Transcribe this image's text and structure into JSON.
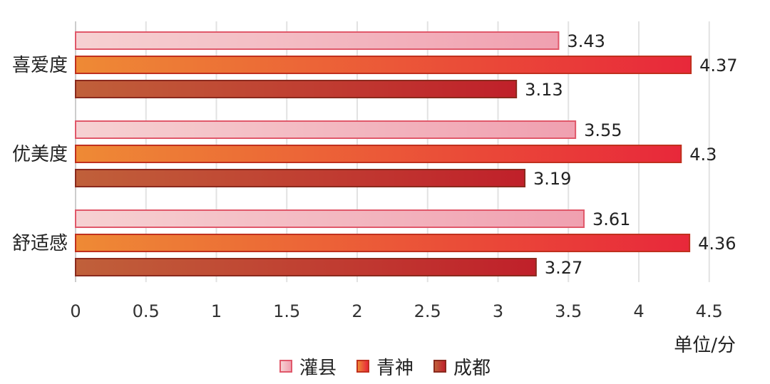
{
  "chart_data": {
    "type": "bar",
    "orientation": "horizontal",
    "categories": [
      "喜爱度",
      "优美度",
      "舒适感"
    ],
    "series": [
      {
        "name": "灌县",
        "values": [
          3.43,
          3.55,
          3.61
        ]
      },
      {
        "name": "青神",
        "values": [
          4.37,
          4.3,
          4.36
        ]
      },
      {
        "name": "成都",
        "values": [
          3.13,
          3.19,
          3.27
        ]
      }
    ],
    "data_labels": [
      [
        "3.43",
        "3.55",
        "3.61"
      ],
      [
        "4.37",
        "4.3",
        "4.36"
      ],
      [
        "3.13",
        "3.19",
        "3.27"
      ]
    ],
    "xticks": [
      "0",
      "0.5",
      "1",
      "1.5",
      "2",
      "2.5",
      "3",
      "3.5",
      "4",
      "4.5"
    ],
    "xlim": [
      0,
      4.5
    ],
    "unit_label": "单位/分",
    "grid": "vertical",
    "legend_position": "bottom-center",
    "colors": [
      {
        "start": "#f6d1d2",
        "end": "#f0a0b0",
        "border": "#e0586a"
      },
      {
        "start": "#ee8a35",
        "end": "#e8283a",
        "border": "#c0301e"
      },
      {
        "start": "#c0603a",
        "end": "#c0202a",
        "border": "#8a2a1e"
      }
    ]
  }
}
